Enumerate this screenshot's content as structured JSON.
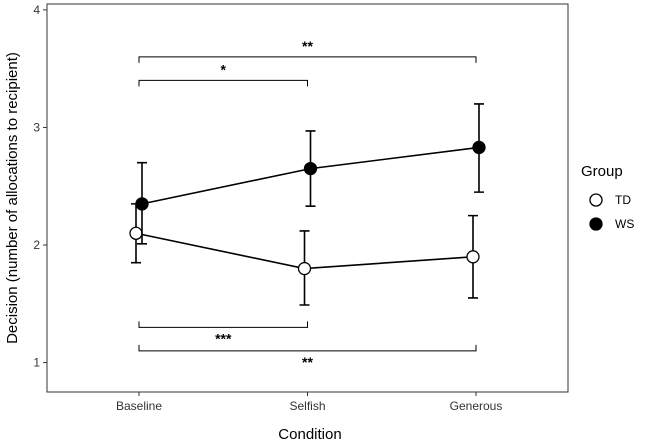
{
  "chart_data": {
    "type": "line",
    "title": "",
    "xlabel": "Condition",
    "ylabel": "Decision (number of allocations to recipient)",
    "categories": [
      "Baseline",
      "Selfish",
      "Generous"
    ],
    "ylim": [
      0.75,
      4.05
    ],
    "yticks": [
      1,
      2,
      3,
      4
    ],
    "grid": false,
    "legend": {
      "title": "Group",
      "placement": "right"
    },
    "series": [
      {
        "name": "TD",
        "marker": "open-circle",
        "values": [
          2.1,
          1.8,
          1.9
        ],
        "lower": [
          1.85,
          1.49,
          1.55
        ],
        "upper": [
          2.35,
          2.12,
          2.25
        ]
      },
      {
        "name": "WS",
        "marker": "filled-circle",
        "values": [
          2.35,
          2.65,
          2.83
        ],
        "lower": [
          2.01,
          2.33,
          2.45
        ],
        "upper": [
          2.7,
          2.97,
          3.2
        ]
      }
    ],
    "annotations": [
      {
        "from": "Baseline",
        "to": "Generous",
        "y": 3.6,
        "label": "**",
        "position": "above"
      },
      {
        "from": "Baseline",
        "to": "Selfish",
        "y": 3.4,
        "label": "*",
        "position": "above"
      },
      {
        "from": "Baseline",
        "to": "Selfish",
        "y": 1.3,
        "label": "***",
        "position": "below"
      },
      {
        "from": "Baseline",
        "to": "Generous",
        "y": 1.1,
        "label": "**",
        "position": "below"
      }
    ]
  },
  "colors": {
    "ink": "#000000",
    "panel_border": "#333333",
    "tick_text": "#333333",
    "background": "#ffffff"
  }
}
